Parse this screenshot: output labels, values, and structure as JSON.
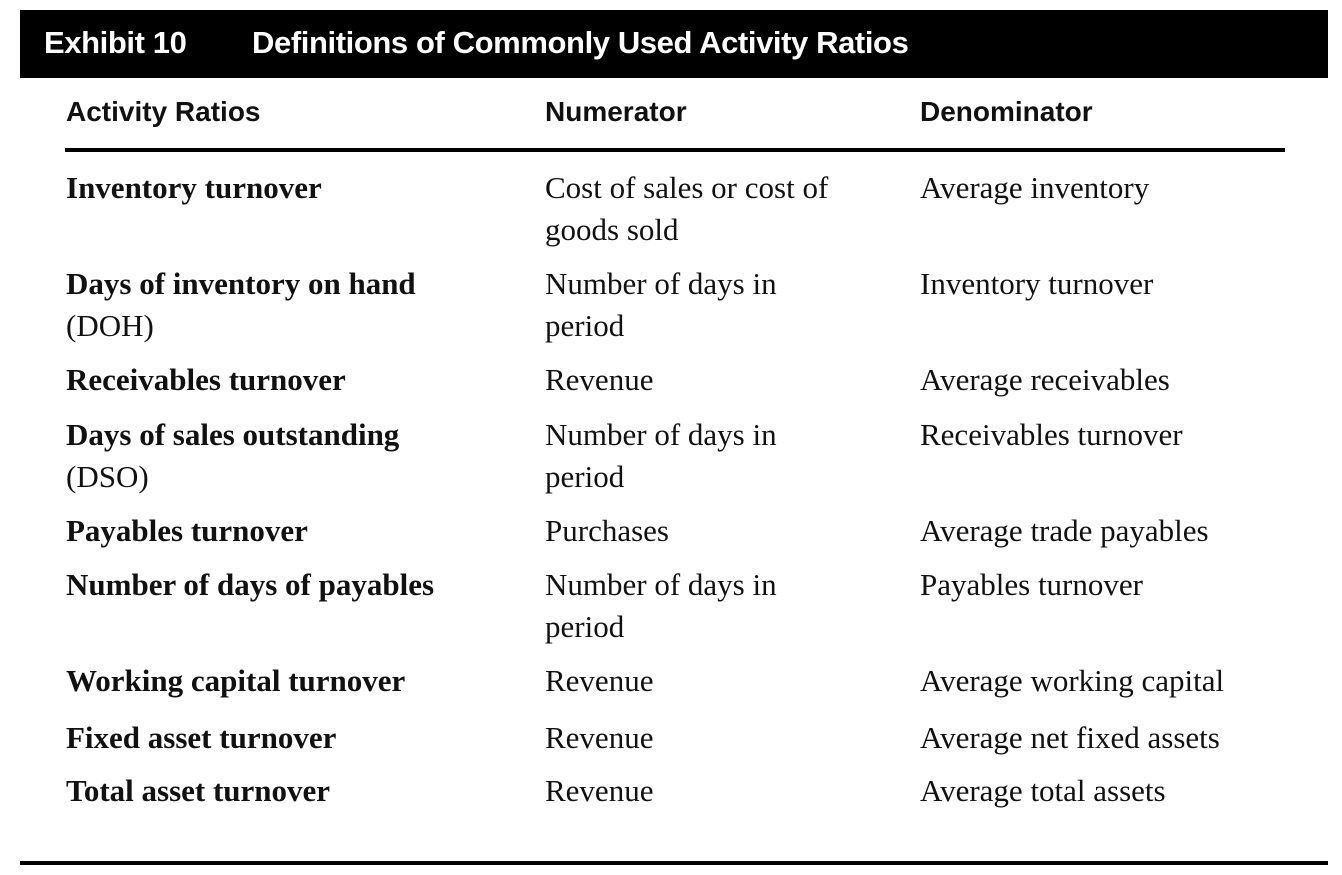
{
  "exhibit": {
    "number": "Exhibit 10",
    "title": "Definitions of Commonly Used Activity Ratios"
  },
  "columns": {
    "ratio": "Activity Ratios",
    "numerator": "Numerator",
    "denominator": "Denominator"
  },
  "rows": [
    {
      "ratio": "Inventory turnover",
      "ratio_abbr": "",
      "numerator": [
        "Cost of sales or cost of",
        "goods sold"
      ],
      "denominator": "Average inventory"
    },
    {
      "ratio": "Days of inventory on hand",
      "ratio_abbr": "(DOH)",
      "numerator": [
        "Number of days in",
        "period"
      ],
      "denominator": "Inventory turnover"
    },
    {
      "ratio": "Receivables turnover",
      "ratio_abbr": "",
      "numerator": [
        "Revenue",
        ""
      ],
      "denominator": "Average receivables"
    },
    {
      "ratio": "Days of sales outstanding",
      "ratio_abbr": "(DSO)",
      "numerator": [
        "Number of days in",
        "period"
      ],
      "denominator": "Receivables turnover"
    },
    {
      "ratio": "Payables turnover",
      "ratio_abbr": "",
      "numerator": [
        "Purchases",
        ""
      ],
      "denominator": "Average trade payables"
    },
    {
      "ratio": "Number of days of payables",
      "ratio_abbr": "",
      "numerator": [
        "Number of days in",
        "period"
      ],
      "denominator": "Payables turnover"
    },
    {
      "ratio": "Working capital turnover",
      "ratio_abbr": "",
      "numerator": [
        "Revenue",
        ""
      ],
      "denominator": "Average working capital"
    },
    {
      "ratio": "Fixed asset turnover",
      "ratio_abbr": "",
      "numerator": [
        "Revenue",
        ""
      ],
      "denominator": "Average net fixed assets"
    },
    {
      "ratio": "Total asset turnover",
      "ratio_abbr": "",
      "numerator": [
        "Revenue",
        ""
      ],
      "denominator": "Average total assets"
    }
  ]
}
